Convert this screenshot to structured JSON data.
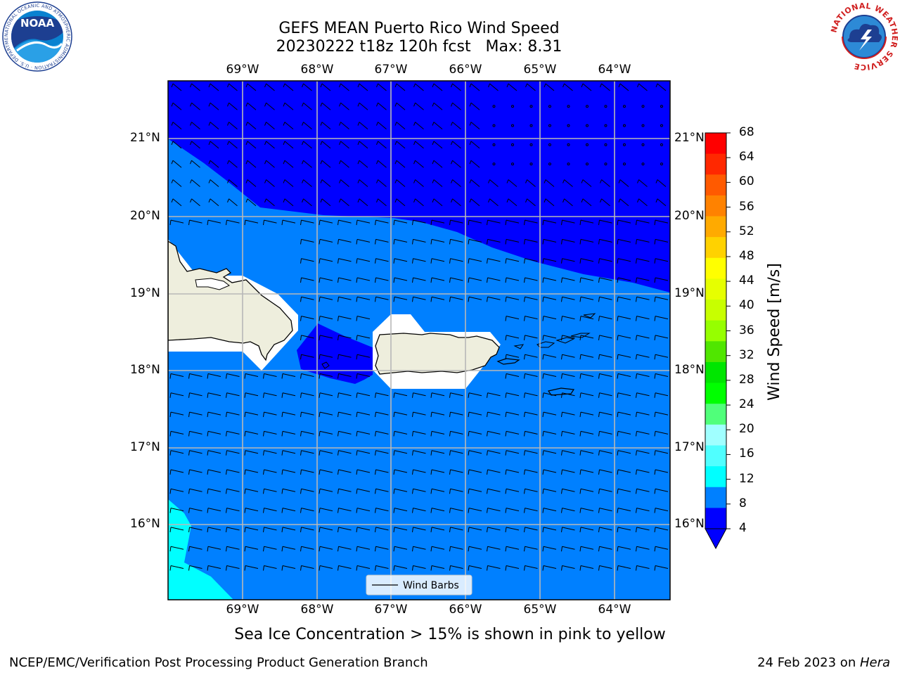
{
  "title": {
    "line1": "GEFS MEAN Puerto Rico Wind Speed",
    "line2": "20230222 t18z 120h fcst   Max: 8.31"
  },
  "map": {
    "lon_labels": [
      "69°W",
      "68°W",
      "67°W",
      "66°W",
      "65°W",
      "64°W"
    ],
    "lat_labels": [
      "21°N",
      "20°N",
      "19°N",
      "18°N",
      "17°N",
      "16°N"
    ],
    "legend_label": "Wind Barbs",
    "land_color": "#eeeedd",
    "colors": {
      "c4_8": "#0080ff",
      "c0_4": "#0000ff",
      "c8_12": "#00ffff"
    }
  },
  "colorbar": {
    "label": "Wind Speed [m/s]",
    "ticks": [
      "68",
      "64",
      "60",
      "56",
      "52",
      "48",
      "44",
      "40",
      "36",
      "32",
      "28",
      "24",
      "20",
      "16",
      "12",
      "8",
      "4"
    ],
    "colors": [
      "#ff0000",
      "#ff2800",
      "#ff5a00",
      "#ff8200",
      "#ffaa00",
      "#ffd200",
      "#ffff00",
      "#e6ff00",
      "#c8ff00",
      "#96ff00",
      "#50e600",
      "#00e600",
      "#00ff00",
      "#50ff7a",
      "#a0ffff",
      "#50ffff",
      "#00ffff",
      "#0080ff",
      "#0000ff"
    ]
  },
  "caption": "Sea Ice Concentration > 15% is shown in pink to yellow",
  "footer": {
    "left": "NCEP/EMC/Verification Post Processing Product Generation Branch",
    "right_prefix": "24 Feb 2023 on ",
    "right_host": "Hera"
  },
  "logos": {
    "noaa_text": "NOAA",
    "noaa_ring": "NATIONAL OCEANIC AND ATMOSPHERIC ADMINISTRATION · U.S. DEPARTMENT OF COMMERCE ·",
    "nws_ring": "NATIONAL WEATHER SERVICE"
  }
}
